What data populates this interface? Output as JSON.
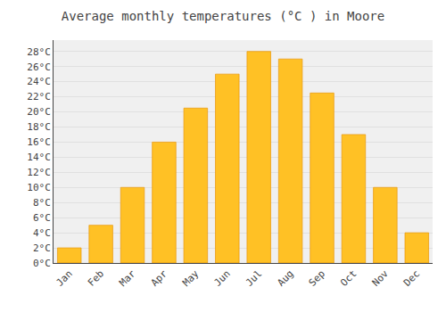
{
  "chart_data": {
    "type": "bar",
    "title": "Average monthly temperatures (°C ) in Moore",
    "categories": [
      "Jan",
      "Feb",
      "Mar",
      "Apr",
      "May",
      "Jun",
      "Jul",
      "Aug",
      "Sep",
      "Oct",
      "Nov",
      "Dec"
    ],
    "values": [
      2,
      5,
      10,
      16,
      20.5,
      25,
      28,
      27,
      22.5,
      17,
      10,
      4
    ],
    "color": "#FFC125",
    "ylim": [
      0,
      29.5
    ],
    "yticks": [
      {
        "value": 0,
        "label": "0°C"
      },
      {
        "value": 2,
        "label": "2°C"
      },
      {
        "value": 4,
        "label": "4°C"
      },
      {
        "value": 6,
        "label": "6°C"
      },
      {
        "value": 8,
        "label": "8°C"
      },
      {
        "value": 10,
        "label": "10°C"
      },
      {
        "value": 12,
        "label": "12°C"
      },
      {
        "value": 14,
        "label": "14°C"
      },
      {
        "value": 16,
        "label": "16°C"
      },
      {
        "value": 18,
        "label": "18°C"
      },
      {
        "value": 20,
        "label": "20°C"
      },
      {
        "value": 22,
        "label": "22°C"
      },
      {
        "value": 24,
        "label": "24°C"
      },
      {
        "value": 26,
        "label": "26°C"
      },
      {
        "value": 28,
        "label": "28°C"
      }
    ],
    "grid": true
  }
}
